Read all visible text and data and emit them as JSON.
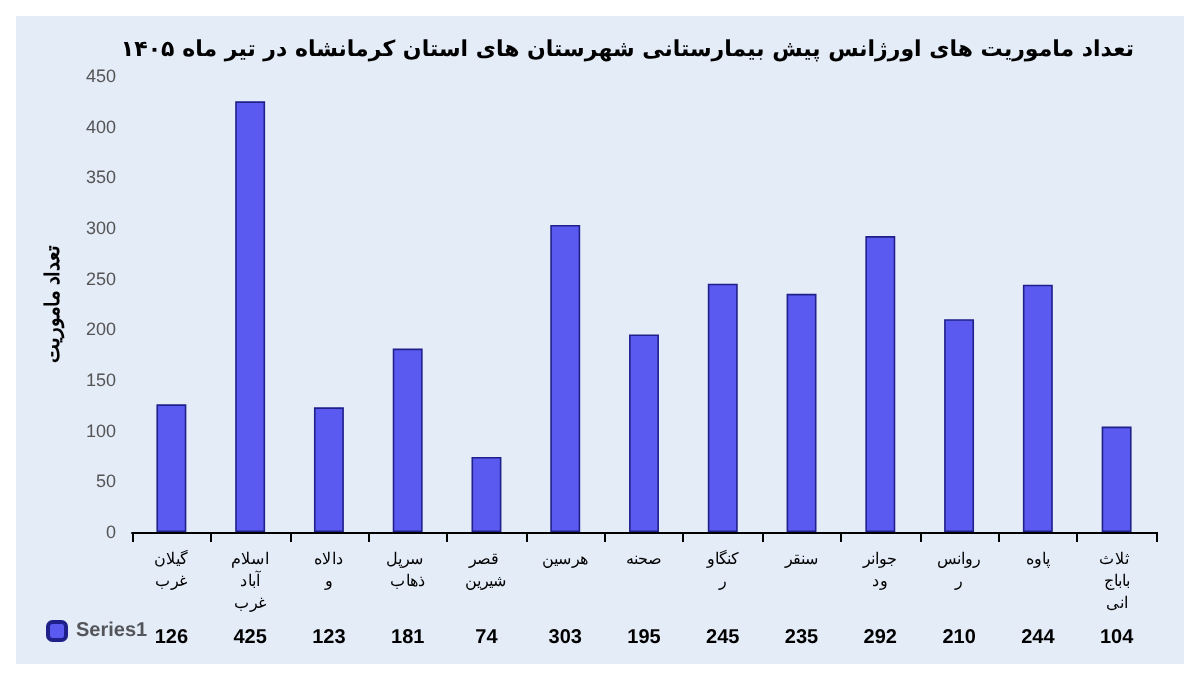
{
  "chart_data": {
    "type": "bar",
    "title": "تعداد ماموریت های اورژانس پیش بیمارستانی شهرستان های استان کرمانشاه در تیر ماه ۱۴۰۵",
    "ylabel": "تعداد ماموریت",
    "categories": [
      "گیلانغرب",
      "اسلام آباد غرب",
      "دالاهو",
      "سرپل ذهاب",
      "قصر شیرین",
      "هرسین",
      "صحنه",
      "کنگاور",
      "سنقر",
      "جوانرود",
      "روانسر",
      "پاوه",
      "ثلاث باباجانی"
    ],
    "series": [
      {
        "name": "Series1",
        "color": "#5a5af0",
        "values": [
          126,
          425,
          123,
          181,
          74,
          303,
          195,
          245,
          235,
          292,
          210,
          244,
          104
        ]
      }
    ],
    "ylim": [
      0,
      450
    ],
    "yticks": [
      0,
      50,
      100,
      150,
      200,
      250,
      300,
      350,
      400,
      450
    ],
    "grid": false,
    "legend": "bottom left",
    "data_labels": true
  }
}
